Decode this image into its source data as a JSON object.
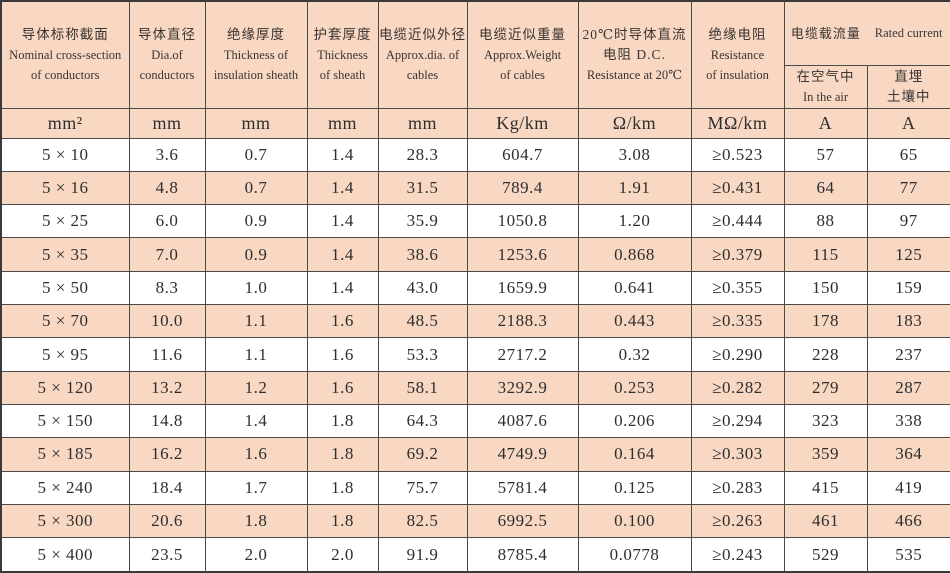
{
  "table": {
    "col_ids": [
      "nominal-cross-section",
      "conductor-diameter",
      "insulation-thickness",
      "sheath-thickness",
      "approx-diameter",
      "approx-weight",
      "dc-resistance",
      "insulation-resistance",
      "current-in-air",
      "current-buried"
    ],
    "cols": [
      {
        "lines": [
          "导体标称截面",
          "Nominal cross-section",
          "of conductors"
        ],
        "unit": "mm²"
      },
      {
        "lines": [
          "导体直径",
          "Dia.of",
          "conductors"
        ],
        "unit": "mm"
      },
      {
        "lines": [
          "绝缘厚度",
          "Thickness of",
          "insulation sheath"
        ],
        "unit": "mm"
      },
      {
        "lines": [
          "护套厚度",
          "Thickness",
          "of sheath"
        ],
        "unit": "mm"
      },
      {
        "lines": [
          "电缆近似外径",
          "Approx.dia. of",
          "cables"
        ],
        "unit": "mm"
      },
      {
        "lines": [
          "电缆近似重量",
          "Approx.Weight",
          "of cables"
        ],
        "unit": "Kg/km"
      },
      {
        "lines": [
          "20℃时导体直流",
          "电阻 D.C.",
          "Resistance at 20℃"
        ],
        "unit": "Ω/km"
      },
      {
        "lines": [
          "绝缘电阻",
          "Resistance",
          "of insulation"
        ],
        "unit": "MΩ/km"
      },
      {
        "lines": [
          "在空气中",
          "In the air"
        ],
        "unit": "A"
      },
      {
        "lines": [
          "直埋",
          "土壤中"
        ],
        "unit": "A"
      }
    ],
    "group": {
      "zh": "电缆载流量",
      "en": "Rated current"
    },
    "colors": {
      "stripe": "#f8d7c3",
      "border": "#4a4a4a",
      "text": "#2e2e2e"
    },
    "rows": [
      {
        "cells": [
          "5 × 10",
          "3.6",
          "0.7",
          "1.4",
          "28.3",
          "604.7",
          "3.08",
          "≥0.523",
          "57",
          "65"
        ]
      },
      {
        "cells": [
          "5 × 16",
          "4.8",
          "0.7",
          "1.4",
          "31.5",
          "789.4",
          "1.91",
          "≥0.431",
          "64",
          "77"
        ]
      },
      {
        "cells": [
          "5 × 25",
          "6.0",
          "0.9",
          "1.4",
          "35.9",
          "1050.8",
          "1.20",
          "≥0.444",
          "88",
          "97"
        ]
      },
      {
        "cells": [
          "5 × 35",
          "7.0",
          "0.9",
          "1.4",
          "38.6",
          "1253.6",
          "0.868",
          "≥0.379",
          "115",
          "125"
        ]
      },
      {
        "cells": [
          "5 × 50",
          "8.3",
          "1.0",
          "1.4",
          "43.0",
          "1659.9",
          "0.641",
          "≥0.355",
          "150",
          "159"
        ]
      },
      {
        "cells": [
          "5 × 70",
          "10.0",
          "1.1",
          "1.6",
          "48.5",
          "2188.3",
          "0.443",
          "≥0.335",
          "178",
          "183"
        ]
      },
      {
        "cells": [
          "5 × 95",
          "11.6",
          "1.1",
          "1.6",
          "53.3",
          "2717.2",
          "0.32",
          "≥0.290",
          "228",
          "237"
        ]
      },
      {
        "cells": [
          "5 × 120",
          "13.2",
          "1.2",
          "1.6",
          "58.1",
          "3292.9",
          "0.253",
          "≥0.282",
          "279",
          "287"
        ]
      },
      {
        "cells": [
          "5 × 150",
          "14.8",
          "1.4",
          "1.8",
          "64.3",
          "4087.6",
          "0.206",
          "≥0.294",
          "323",
          "338"
        ]
      },
      {
        "cells": [
          "5 × 185",
          "16.2",
          "1.6",
          "1.8",
          "69.2",
          "4749.9",
          "0.164",
          "≥0.303",
          "359",
          "364"
        ]
      },
      {
        "cells": [
          "5 × 240",
          "18.4",
          "1.7",
          "1.8",
          "75.7",
          "5781.4",
          "0.125",
          "≥0.283",
          "415",
          "419"
        ]
      },
      {
        "cells": [
          "5 × 300",
          "20.6",
          "1.8",
          "1.8",
          "82.5",
          "6992.5",
          "0.100",
          "≥0.263",
          "461",
          "466"
        ]
      },
      {
        "cells": [
          "5 × 400",
          "23.5",
          "2.0",
          "2.0",
          "91.9",
          "8785.4",
          "0.0778",
          "≥0.243",
          "529",
          "535"
        ]
      }
    ]
  }
}
